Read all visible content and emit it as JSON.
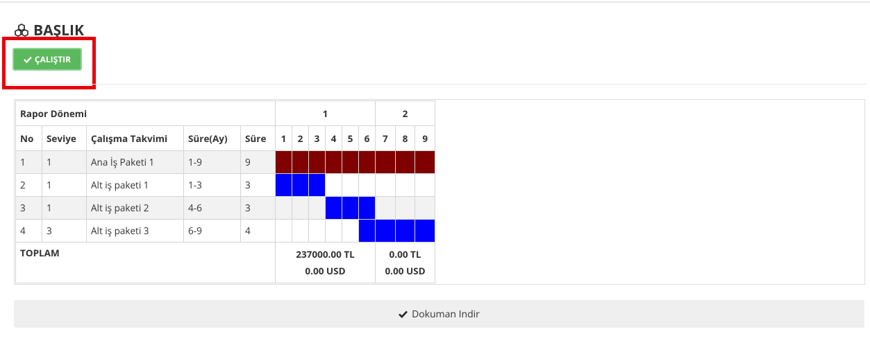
{
  "header": {
    "title": "BAŞLIK"
  },
  "run_button": {
    "label": "ÇALIŞTIR"
  },
  "table": {
    "report_period_label": "Rapor Dönemi",
    "periods": [
      {
        "label": "1",
        "months": [
          "1",
          "2",
          "3",
          "4",
          "5",
          "6"
        ]
      },
      {
        "label": "2",
        "months": [
          "7",
          "8",
          "9"
        ]
      }
    ],
    "columns": [
      "No",
      "Seviye",
      "Çalışma Takvimi",
      "Süre(Ay)",
      "Süre"
    ],
    "rows": [
      {
        "cells": [
          "1",
          "1",
          "Ana İş Paketi 1",
          "1-9",
          "9"
        ],
        "color": "#800000",
        "active_months": [
          1,
          2,
          3,
          4,
          5,
          6,
          7,
          8,
          9
        ]
      },
      {
        "cells": [
          "2",
          "1",
          "Alt iş paketi 1",
          "1-3",
          "3"
        ],
        "color": "#0000ff",
        "active_months": [
          1,
          2,
          3
        ]
      },
      {
        "cells": [
          "3",
          "1",
          "Alt iş paketi 2",
          "4-6",
          "3"
        ],
        "color": "#0000ff",
        "active_months": [
          4,
          5,
          6
        ]
      },
      {
        "cells": [
          "4",
          "3",
          "Alt iş paketi 3",
          "6-9",
          "4"
        ],
        "color": "#0000ff",
        "active_months": [
          6,
          7,
          8,
          9
        ]
      }
    ],
    "total_label": "TOPLAM",
    "totals": [
      [
        "237000.00 TL",
        "0.00 USD"
      ],
      [
        "0.00 TL",
        "0.00 USD"
      ]
    ]
  },
  "download_button": {
    "label": "Dokuman Indir"
  }
}
